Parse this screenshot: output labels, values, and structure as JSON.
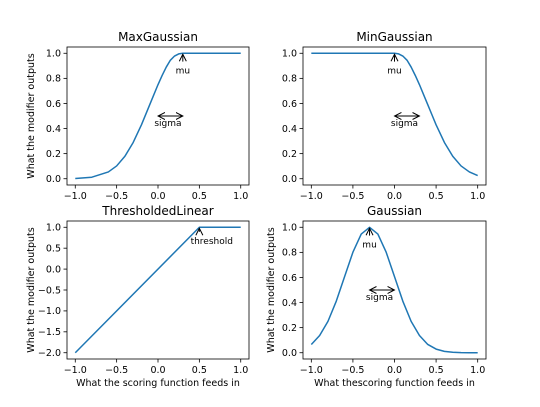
{
  "colors": {
    "line": "#1f77b4",
    "axis": "#000000",
    "background": "#ffffff"
  },
  "chart_data": [
    {
      "type": "line",
      "title": "MaxGaussian",
      "xlabel": "",
      "ylabel": "What the modifier outputs",
      "xlim": [
        -1.1,
        1.1
      ],
      "ylim": [
        -0.05,
        1.05
      ],
      "xticks": [
        -1.0,
        -0.5,
        0.0,
        0.5,
        1.0
      ],
      "yticks": [
        0.0,
        0.2,
        0.4,
        0.6,
        0.8,
        1.0
      ],
      "xtick_labels": [
        "−1.0",
        "−0.5",
        "0.0",
        "0.5",
        "1.0"
      ],
      "ytick_labels": [
        "0.0",
        "0.2",
        "0.4",
        "0.6",
        "0.8",
        "1.0"
      ],
      "grid": false,
      "series": [
        {
          "x": [
            -1.0,
            -0.8,
            -0.6,
            -0.5,
            -0.4,
            -0.3,
            -0.2,
            -0.1,
            0.0,
            0.05,
            0.1,
            0.15,
            0.2,
            0.25,
            0.3,
            0.4,
            0.6,
            0.8,
            1.0
          ],
          "y": [
            0.002,
            0.012,
            0.054,
            0.102,
            0.179,
            0.289,
            0.43,
            0.59,
            0.75,
            0.823,
            0.89,
            0.945,
            0.978,
            0.995,
            1.0,
            1.0,
            1.0,
            1.0,
            1.0
          ]
        }
      ],
      "annotations": [
        {
          "type": "arrow",
          "text": "mu",
          "text_x": 0.3,
          "text_y": 0.87,
          "x": 0.3,
          "y": 1.0
        },
        {
          "type": "double_arrow",
          "text": "sigma",
          "x1": 0.0,
          "x2": 0.3,
          "y": 0.5,
          "text_x": 0.12,
          "text_y": 0.445
        }
      ]
    },
    {
      "type": "line",
      "title": "MinGaussian",
      "xlabel": "",
      "ylabel": "",
      "xlim": [
        -1.1,
        1.1
      ],
      "ylim": [
        -0.05,
        1.05
      ],
      "xticks": [
        -1.0,
        -0.5,
        0.0,
        0.5,
        1.0
      ],
      "yticks": [
        0.0,
        0.2,
        0.4,
        0.6,
        0.8,
        1.0
      ],
      "xtick_labels": [
        "−1.0",
        "−0.5",
        "0.0",
        "0.5",
        "1.0"
      ],
      "ytick_labels": [
        "0.0",
        "0.2",
        "0.4",
        "0.6",
        "0.8",
        "1.0"
      ],
      "grid": false,
      "series": [
        {
          "x": [
            -1.0,
            -0.5,
            0.0,
            0.05,
            0.1,
            0.15,
            0.2,
            0.25,
            0.3,
            0.35,
            0.4,
            0.45,
            0.5,
            0.6,
            0.7,
            0.8,
            0.9,
            1.0
          ],
          "y": [
            1.0,
            1.0,
            1.0,
            0.995,
            0.978,
            0.945,
            0.89,
            0.823,
            0.75,
            0.67,
            0.59,
            0.51,
            0.43,
            0.289,
            0.179,
            0.102,
            0.054,
            0.025
          ]
        }
      ],
      "annotations": [
        {
          "type": "arrow",
          "text": "mu",
          "text_x": 0.0,
          "text_y": 0.87,
          "x": 0.0,
          "y": 1.0
        },
        {
          "type": "double_arrow",
          "text": "sigma",
          "x1": 0.0,
          "x2": 0.3,
          "y": 0.5,
          "text_x": 0.12,
          "text_y": 0.445
        }
      ]
    },
    {
      "type": "line",
      "title": "ThresholdedLinear",
      "xlabel": "What the scoring function feeds in",
      "ylabel": "What the modifier outputs",
      "xlim": [
        -1.1,
        1.1
      ],
      "ylim": [
        -2.15,
        1.15
      ],
      "xticks": [
        -1.0,
        -0.5,
        0.0,
        0.5,
        1.0
      ],
      "yticks": [
        -2.0,
        -1.5,
        -1.0,
        -0.5,
        0.0,
        0.5,
        1.0
      ],
      "xtick_labels": [
        "−1.0",
        "−0.5",
        "0.0",
        "0.5",
        "1.0"
      ],
      "ytick_labels": [
        "−2.0",
        "−1.5",
        "−1.0",
        "−0.5",
        "0.0",
        "0.5",
        "1.0"
      ],
      "grid": false,
      "series": [
        {
          "x": [
            -1.0,
            0.5,
            1.0
          ],
          "y": [
            -2.0,
            1.0,
            1.0
          ]
        }
      ],
      "annotations": [
        {
          "type": "arrow",
          "text": "threshold",
          "text_x": 0.65,
          "text_y": 0.7,
          "x": 0.5,
          "y": 1.0
        }
      ]
    },
    {
      "type": "line",
      "title": "Gaussian",
      "xlabel": "What thescoring function feeds in",
      "ylabel": "What the modifier outputs",
      "xlim": [
        -1.1,
        1.1
      ],
      "ylim": [
        -0.05,
        1.05
      ],
      "xticks": [
        -1.0,
        -0.5,
        0.0,
        0.5,
        1.0
      ],
      "yticks": [
        0.0,
        0.2,
        0.4,
        0.6,
        0.8,
        1.0
      ],
      "xtick_labels": [
        "−1.0",
        "−0.5",
        "0.0",
        "0.5",
        "1.0"
      ],
      "ytick_labels": [
        "0.0",
        "0.2",
        "0.4",
        "0.6",
        "0.8",
        "1.0"
      ],
      "grid": false,
      "series": [
        {
          "x": [
            -1.0,
            -0.9,
            -0.8,
            -0.7,
            -0.6,
            -0.5,
            -0.4,
            -0.3,
            -0.2,
            -0.1,
            0.0,
            0.1,
            0.2,
            0.3,
            0.4,
            0.5,
            0.6,
            0.7,
            0.8,
            0.9,
            1.0
          ],
          "y": [
            0.066,
            0.137,
            0.25,
            0.411,
            0.607,
            0.801,
            0.946,
            1.0,
            0.946,
            0.801,
            0.607,
            0.411,
            0.25,
            0.137,
            0.066,
            0.029,
            0.011,
            0.004,
            0.001,
            0.0,
            0.0
          ]
        }
      ],
      "annotations": [
        {
          "type": "arrow",
          "text": "mu",
          "text_x": -0.3,
          "text_y": 0.87,
          "x": -0.3,
          "y": 1.0
        },
        {
          "type": "double_arrow",
          "text": "sigma",
          "x1": -0.3,
          "x2": 0.0,
          "y": 0.5,
          "text_x": -0.18,
          "text_y": 0.445
        }
      ]
    }
  ]
}
